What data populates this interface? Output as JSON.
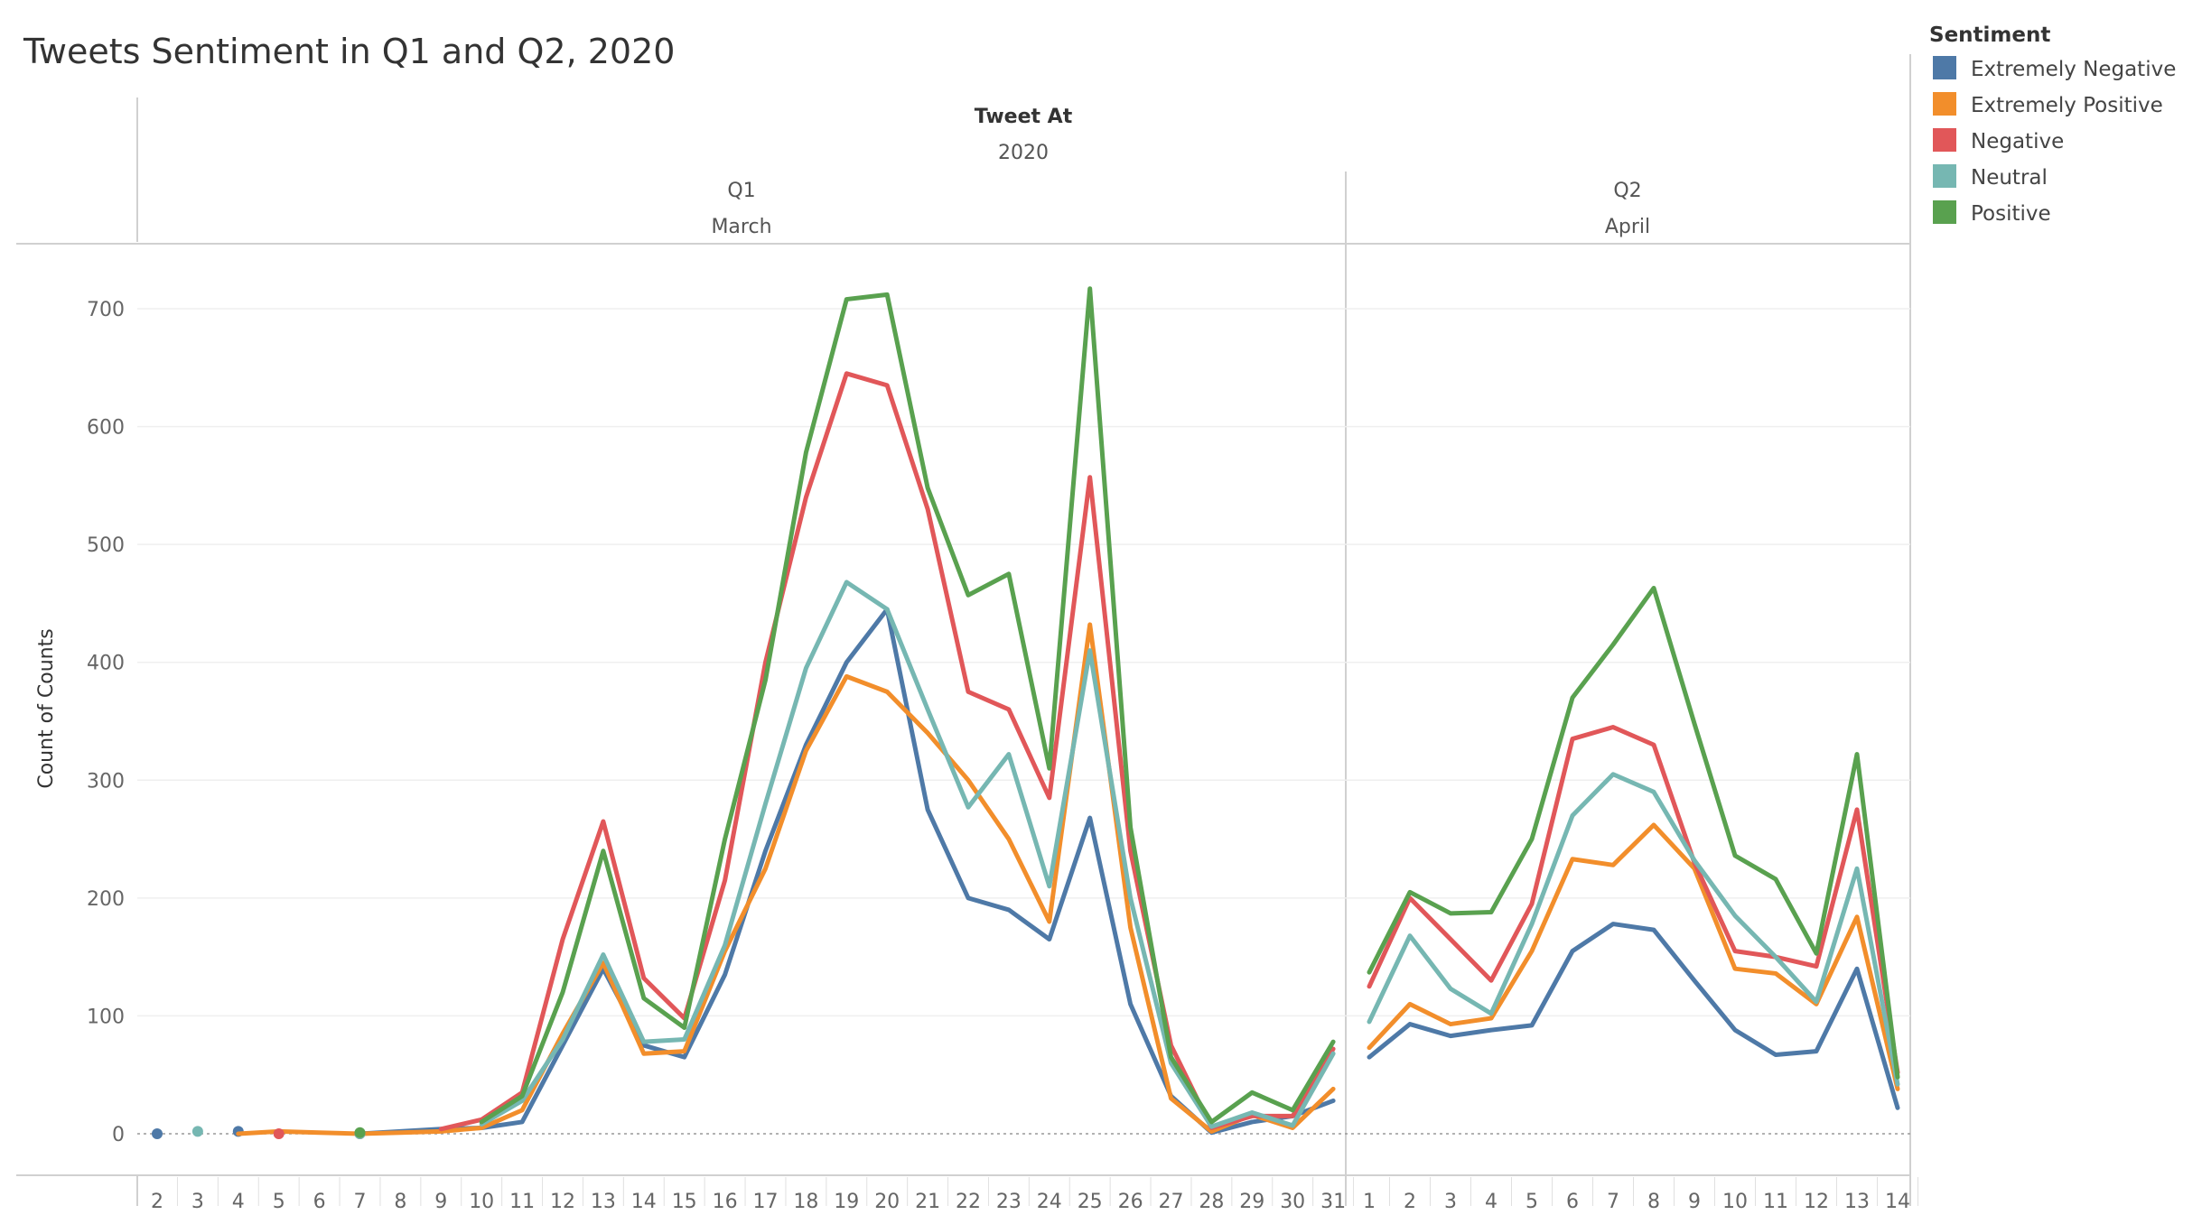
{
  "chart_data": {
    "type": "line",
    "title": "Tweets Sentiment in Q1 and Q2, 2020",
    "column_header": {
      "field": "Tweet At",
      "year": "2020"
    },
    "ylabel": "Count of Counts",
    "ylim": [
      0,
      750
    ],
    "yticks": [
      0,
      100,
      200,
      300,
      400,
      500,
      600,
      700
    ],
    "grid": true,
    "legend": {
      "title": "Sentiment",
      "position": "top-right"
    },
    "panes": [
      {
        "quarter": "Q1",
        "month": "March",
        "x": [
          "2",
          "3",
          "4",
          "5",
          "6",
          "7",
          "8",
          "9",
          "10",
          "11",
          "12",
          "13",
          "14",
          "15",
          "16",
          "17",
          "18",
          "19",
          "20",
          "21",
          "22",
          "23",
          "24",
          "25",
          "26",
          "27",
          "28",
          "29",
          "30",
          "31"
        ]
      },
      {
        "quarter": "Q2",
        "month": "April",
        "x": [
          "1",
          "2",
          "3",
          "4",
          "5",
          "6",
          "7",
          "8",
          "9",
          "10",
          "11",
          "12",
          "13",
          "14"
        ]
      }
    ],
    "series": [
      {
        "name": "Extremely Negative",
        "color": "#4e79a7",
        "values": [
          [
            0,
            null,
            2,
            null,
            null,
            0,
            2,
            4,
            5,
            10,
            75,
            140,
            75,
            65,
            135,
            240,
            330,
            400,
            445,
            275,
            200,
            190,
            165,
            268,
            110,
            32,
            1,
            10,
            15,
            28
          ],
          [
            65,
            93,
            83,
            88,
            92,
            155,
            178,
            173,
            130,
            88,
            67,
            70,
            140,
            22
          ]
        ]
      },
      {
        "name": "Extremely Positive",
        "color": "#f28e2b",
        "values": [
          [
            null,
            null,
            0,
            2,
            1,
            0,
            1,
            2,
            5,
            20,
            85,
            145,
            68,
            70,
            155,
            225,
            325,
            388,
            375,
            340,
            300,
            250,
            180,
            432,
            175,
            30,
            2,
            16,
            5,
            38
          ],
          [
            73,
            110,
            93,
            98,
            155,
            233,
            228,
            262,
            225,
            140,
            136,
            110,
            184,
            38
          ]
        ]
      },
      {
        "name": "Negative",
        "color": "#e15759",
        "values": [
          [
            null,
            null,
            null,
            0,
            null,
            0,
            null,
            4,
            12,
            35,
            165,
            265,
            132,
            98,
            215,
            400,
            540,
            645,
            635,
            530,
            375,
            360,
            285,
            557,
            240,
            75,
            5,
            15,
            15,
            72
          ],
          [
            125,
            200,
            165,
            130,
            195,
            335,
            345,
            330,
            230,
            155,
            150,
            142,
            275,
            52
          ]
        ]
      },
      {
        "name": "Neutral",
        "color": "#76b7b2",
        "values": [
          [
            null,
            2,
            null,
            null,
            null,
            0,
            null,
            null,
            8,
            28,
            80,
            152,
            78,
            80,
            160,
            280,
            395,
            468,
            445,
            360,
            277,
            322,
            210,
            410,
            200,
            60,
            6,
            18,
            7,
            68
          ],
          [
            95,
            168,
            123,
            102,
            178,
            270,
            305,
            290,
            232,
            185,
            150,
            112,
            225,
            42
          ]
        ]
      },
      {
        "name": "Positive",
        "color": "#59a14f",
        "values": [
          [
            null,
            null,
            null,
            null,
            null,
            1,
            null,
            null,
            10,
            32,
            120,
            240,
            115,
            90,
            250,
            385,
            578,
            708,
            712,
            548,
            457,
            475,
            310,
            717,
            260,
            65,
            10,
            35,
            20,
            78
          ],
          [
            137,
            205,
            187,
            188,
            250,
            370,
            415,
            463,
            348,
            236,
            216,
            153,
            322,
            48
          ]
        ]
      }
    ]
  }
}
